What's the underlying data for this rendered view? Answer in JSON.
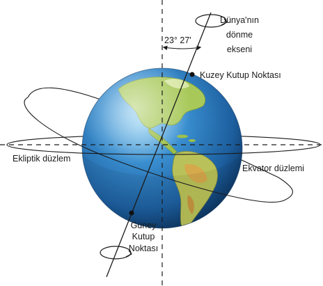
{
  "labels": {
    "rotation_axis": [
      "Dünya'nın",
      "dönme",
      "ekseni"
    ],
    "angle": "23° 27'",
    "north_pole": "Kuzey Kutup Noktası",
    "ecliptic": "Ekliptik düzlem",
    "equator": "Ekvator düzlemi",
    "south_pole": [
      "Güney",
      "Kutup",
      "Noktası"
    ]
  },
  "colors": {
    "ocean": "#2f7fc1",
    "ocean_dark": "#0d3a66",
    "land": "#9bbf4a",
    "land_warm": "#c9a24a",
    "line": "#1a1a1a"
  }
}
